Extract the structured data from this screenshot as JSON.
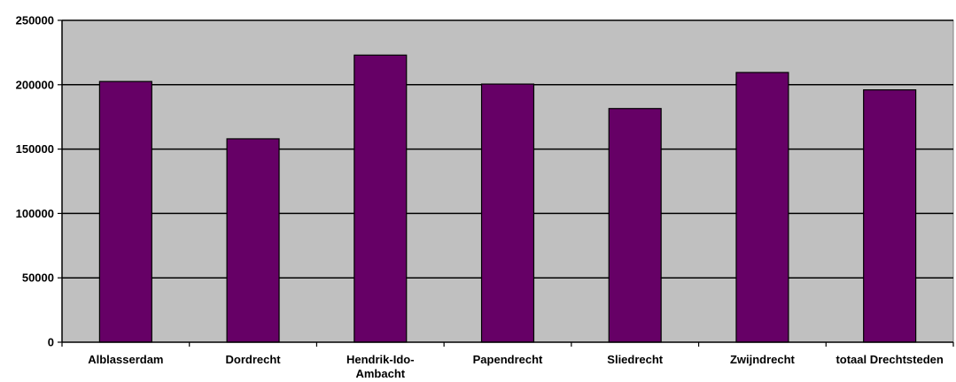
{
  "chart_data": {
    "type": "bar",
    "title": "",
    "xlabel": "",
    "ylabel": "",
    "categories": [
      [
        "Alblasserdam"
      ],
      [
        "Dordrecht"
      ],
      [
        "Hendrik-Ido-",
        "Ambacht"
      ],
      [
        "Papendrecht"
      ],
      [
        "Sliedrecht"
      ],
      [
        "Zwijndrecht"
      ],
      [
        "totaal Drechtsteden"
      ]
    ],
    "values": [
      202500,
      158000,
      223000,
      200500,
      181500,
      209500,
      196000
    ],
    "ylim": [
      0,
      250000
    ],
    "yticks": [
      0,
      50000,
      100000,
      150000,
      200000,
      250000
    ],
    "ytick_labels": [
      "0",
      "50000",
      "100000",
      "150000",
      "200000",
      "250000"
    ],
    "grid": true,
    "legend": "none",
    "colors": {
      "bar": "#660066",
      "plot_background": "#c0c0c0",
      "grid": "#000000"
    }
  }
}
